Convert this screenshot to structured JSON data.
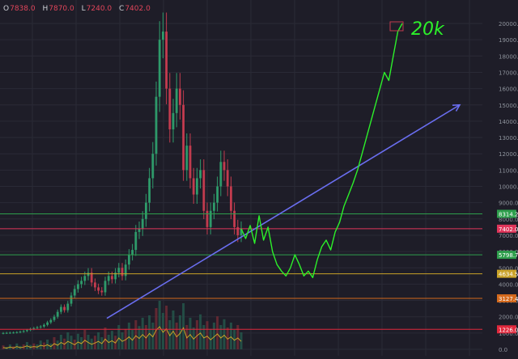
{
  "ohlc": {
    "open_label": "O",
    "open": "7838.0",
    "high_label": "H",
    "high": "7870.0",
    "low_label": "L",
    "low": "7240.0",
    "close_label": "C",
    "close": "7402.0"
  },
  "colors": {
    "background": "#1e1d28",
    "grid": "#2a2a36",
    "bull": "#2e9a6a",
    "bear": "#c23b4e",
    "trendline": "#6a6ef0",
    "projection": "#2cf02a"
  },
  "chart_data": {
    "type": "candlestick",
    "title": "",
    "y_scale": "linear",
    "ylim": [
      0,
      20500
    ],
    "y_ticks": [
      0,
      1000,
      2000,
      3000,
      4000,
      5000,
      6000,
      7000,
      8000,
      9000,
      10000,
      11000,
      12000,
      13000,
      14000,
      15000,
      16000,
      17000,
      18000,
      19000,
      20000
    ],
    "y_tick_labels": [
      "0.0",
      "1000.0",
      "2000.0",
      "3000.0",
      "4000.0",
      "5000.0",
      "6000.0",
      "7000.0",
      "8000.0",
      "9000.0",
      "10000.0",
      "11000.0",
      "12000.0",
      "13000.0",
      "14000.0",
      "15000.0",
      "16000.0",
      "17000.0",
      "18000.0",
      "19000.0",
      "20000.0"
    ],
    "grid": true,
    "price_series_close": [
      1000,
      1010,
      1020,
      1030,
      1050,
      1080,
      1120,
      1180,
      1250,
      1300,
      1350,
      1400,
      1500,
      1650,
      1800,
      2000,
      2300,
      2600,
      2400,
      2800,
      3300,
      3700,
      4000,
      4200,
      4500,
      4700,
      4100,
      3800,
      3600,
      3500,
      4200,
      4500,
      4300,
      4700,
      5000,
      4500,
      5200,
      5800,
      6100,
      7200,
      7400,
      8000,
      9000,
      10500,
      12000,
      15500,
      19000,
      19500,
      16000,
      13500,
      14500,
      16000,
      15000,
      11000,
      12500,
      10500,
      9500,
      10500,
      11000,
      8500,
      7500,
      8500,
      9000,
      10000,
      11500,
      11000,
      10000,
      8500,
      7500,
      7000,
      7402
    ],
    "horizontal_levels": [
      {
        "label": "8314.2",
        "value": 8314.2,
        "color": "#2e9e4c"
      },
      {
        "label": "7402.0",
        "value": 7402.0,
        "color": "#e0355a"
      },
      {
        "label": "5798.7",
        "value": 5798.7,
        "color": "#2e9e4c"
      },
      {
        "label": "4634.5",
        "value": 4634.5,
        "color": "#c9a227"
      },
      {
        "label": "3127.4",
        "value": 3127.4,
        "color": "#d4691c"
      },
      {
        "label": "1226.0",
        "value": 1226.0,
        "color": "#e0283c"
      }
    ],
    "trendline": {
      "start": 1900,
      "end": 15000
    },
    "projection_values": [
      7402,
      6800,
      7600,
      6500,
      8200,
      6700,
      7500,
      6000,
      5200,
      4800,
      4500,
      5000,
      5800,
      5200,
      4500,
      4800,
      4400,
      5500,
      6300,
      6700,
      6100,
      7200,
      7800,
      8800,
      9500,
      10200,
      11000,
      12000,
      13000,
      14000,
      15000,
      16000,
      17000,
      16500,
      18000,
      19500,
      20000
    ],
    "annotation": "20k",
    "volume_relative": [
      0.08,
      0.05,
      0.1,
      0.06,
      0.12,
      0.07,
      0.1,
      0.15,
      0.09,
      0.12,
      0.1,
      0.18,
      0.14,
      0.2,
      0.12,
      0.25,
      0.18,
      0.3,
      0.22,
      0.35,
      0.28,
      0.2,
      0.32,
      0.25,
      0.4,
      0.3,
      0.22,
      0.28,
      0.35,
      0.25,
      0.45,
      0.3,
      0.38,
      0.28,
      0.5,
      0.35,
      0.42,
      0.55,
      0.4,
      0.6,
      0.48,
      0.65,
      0.5,
      0.7,
      0.55,
      0.85,
      1.0,
      0.75,
      0.9,
      0.6,
      0.8,
      0.55,
      0.7,
      0.95,
      0.5,
      0.65,
      0.45,
      0.6,
      0.72,
      0.5,
      0.58,
      0.42,
      0.55,
      0.68,
      0.5,
      0.62,
      0.45,
      0.55,
      0.4,
      0.5,
      0.35
    ]
  }
}
